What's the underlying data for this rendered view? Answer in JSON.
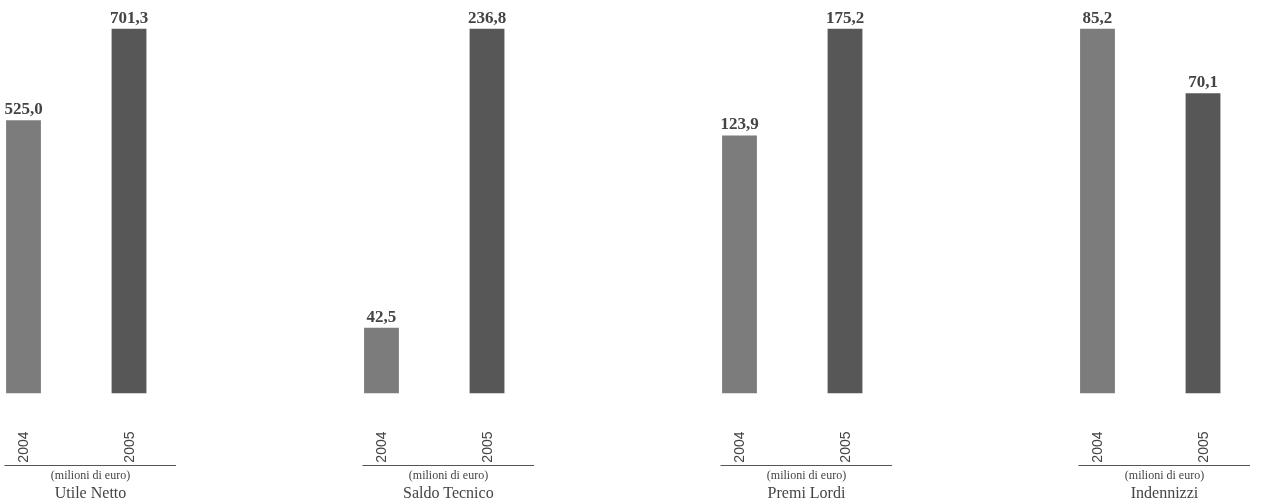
{
  "chart_data": [
    {
      "type": "bar",
      "title": "Utile Netto",
      "subtitle": "(milioni di euro)",
      "categories": [
        "2004",
        "2005"
      ],
      "values": [
        525.0,
        701.3
      ],
      "value_labels": [
        "525,0",
        "701,3"
      ],
      "colors": [
        "#7c7c7c",
        "#575757"
      ],
      "tick_labels": "x"
    },
    {
      "type": "bar",
      "title": "Saldo Tecnico",
      "subtitle": "(milioni di euro)",
      "categories": [
        "2004",
        "2005"
      ],
      "values": [
        42.5,
        236.8
      ],
      "value_labels": [
        "42,5",
        "236,8"
      ],
      "colors": [
        "#7c7c7c",
        "#575757"
      ],
      "tick_labels": "x"
    },
    {
      "type": "bar",
      "title": "Premi Lordi",
      "subtitle": "(milioni di euro)",
      "categories": [
        "2004",
        "2005"
      ],
      "values": [
        123.9,
        175.2
      ],
      "value_labels": [
        "123,9",
        "175,2"
      ],
      "colors": [
        "#7c7c7c",
        "#575757"
      ],
      "tick_labels": "x"
    },
    {
      "type": "bar",
      "title": "Indennizzi",
      "subtitle": "(milioni di euro)",
      "categories": [
        "2004",
        "2005"
      ],
      "values": [
        85.2,
        70.1
      ],
      "value_labels": [
        "85,2",
        "70,1"
      ],
      "colors": [
        "#7c7c7c",
        "#575757"
      ],
      "tick_labels": "x"
    }
  ]
}
